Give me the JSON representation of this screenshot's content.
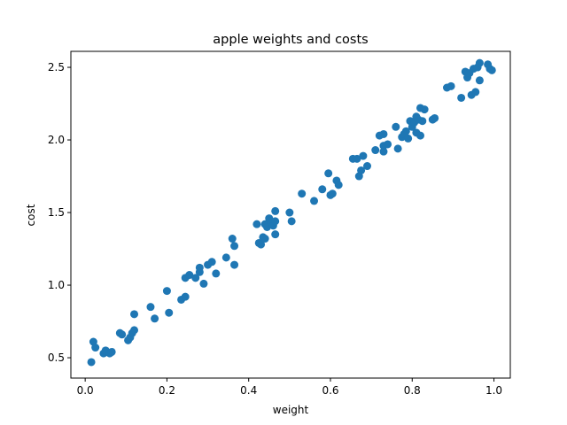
{
  "chart_data": {
    "type": "scatter",
    "title": "apple weights and costs",
    "xlabel": "weight",
    "ylabel": "cost",
    "xlim": [
      -0.035,
      1.04
    ],
    "ylim": [
      0.36,
      2.61
    ],
    "xticks": [
      0.0,
      0.2,
      0.4,
      0.6,
      0.8,
      1.0
    ],
    "xtick_labels": [
      "0.0",
      "0.2",
      "0.4",
      "0.6",
      "0.8",
      "1.0"
    ],
    "yticks": [
      0.5,
      1.0,
      1.5,
      2.0,
      2.5
    ],
    "ytick_labels": [
      "0.5",
      "1.0",
      "1.5",
      "2.0",
      "2.5"
    ],
    "grid": false,
    "legend": "none",
    "marker_color": "#1f77b4",
    "series": [
      {
        "points": [
          [
            0.015,
            0.47
          ],
          [
            0.02,
            0.61
          ],
          [
            0.025,
            0.57
          ],
          [
            0.045,
            0.53
          ],
          [
            0.05,
            0.55
          ],
          [
            0.06,
            0.53
          ],
          [
            0.065,
            0.54
          ],
          [
            0.085,
            0.67
          ],
          [
            0.09,
            0.66
          ],
          [
            0.105,
            0.62
          ],
          [
            0.11,
            0.64
          ],
          [
            0.115,
            0.67
          ],
          [
            0.12,
            0.8
          ],
          [
            0.12,
            0.69
          ],
          [
            0.16,
            0.85
          ],
          [
            0.17,
            0.77
          ],
          [
            0.2,
            0.96
          ],
          [
            0.205,
            0.81
          ],
          [
            0.235,
            0.9
          ],
          [
            0.245,
            0.92
          ],
          [
            0.245,
            1.05
          ],
          [
            0.255,
            1.07
          ],
          [
            0.27,
            1.05
          ],
          [
            0.28,
            1.12
          ],
          [
            0.28,
            1.09
          ],
          [
            0.29,
            1.01
          ],
          [
            0.3,
            1.14
          ],
          [
            0.31,
            1.16
          ],
          [
            0.32,
            1.08
          ],
          [
            0.345,
            1.19
          ],
          [
            0.36,
            1.32
          ],
          [
            0.365,
            1.14
          ],
          [
            0.365,
            1.27
          ],
          [
            0.42,
            1.42
          ],
          [
            0.425,
            1.29
          ],
          [
            0.43,
            1.28
          ],
          [
            0.435,
            1.33
          ],
          [
            0.44,
            1.32
          ],
          [
            0.44,
            1.42
          ],
          [
            0.445,
            1.4
          ],
          [
            0.45,
            1.46
          ],
          [
            0.455,
            1.43
          ],
          [
            0.46,
            1.41
          ],
          [
            0.465,
            1.51
          ],
          [
            0.465,
            1.35
          ],
          [
            0.465,
            1.44
          ],
          [
            0.5,
            1.5
          ],
          [
            0.505,
            1.44
          ],
          [
            0.53,
            1.63
          ],
          [
            0.56,
            1.58
          ],
          [
            0.58,
            1.66
          ],
          [
            0.595,
            1.77
          ],
          [
            0.605,
            1.63
          ],
          [
            0.6,
            1.62
          ],
          [
            0.615,
            1.72
          ],
          [
            0.62,
            1.69
          ],
          [
            0.655,
            1.87
          ],
          [
            0.665,
            1.87
          ],
          [
            0.67,
            1.75
          ],
          [
            0.675,
            1.79
          ],
          [
            0.68,
            1.89
          ],
          [
            0.69,
            1.82
          ],
          [
            0.71,
            1.93
          ],
          [
            0.72,
            2.03
          ],
          [
            0.73,
            1.96
          ],
          [
            0.73,
            2.04
          ],
          [
            0.73,
            1.92
          ],
          [
            0.74,
            1.97
          ],
          [
            0.76,
            2.09
          ],
          [
            0.765,
            1.94
          ],
          [
            0.775,
            2.02
          ],
          [
            0.78,
            2.04
          ],
          [
            0.785,
            2.06
          ],
          [
            0.79,
            2.01
          ],
          [
            0.795,
            2.13
          ],
          [
            0.8,
            2.09
          ],
          [
            0.805,
            2.12
          ],
          [
            0.81,
            2.05
          ],
          [
            0.81,
            2.16
          ],
          [
            0.815,
            2.14
          ],
          [
            0.82,
            2.03
          ],
          [
            0.82,
            2.22
          ],
          [
            0.825,
            2.13
          ],
          [
            0.83,
            2.21
          ],
          [
            0.85,
            2.14
          ],
          [
            0.855,
            2.15
          ],
          [
            0.885,
            2.36
          ],
          [
            0.895,
            2.37
          ],
          [
            0.92,
            2.29
          ],
          [
            0.93,
            2.47
          ],
          [
            0.935,
            2.43
          ],
          [
            0.94,
            2.46
          ],
          [
            0.945,
            2.31
          ],
          [
            0.95,
            2.49
          ],
          [
            0.955,
            2.33
          ],
          [
            0.96,
            2.5
          ],
          [
            0.965,
            2.53
          ],
          [
            0.965,
            2.41
          ],
          [
            0.985,
            2.52
          ],
          [
            0.99,
            2.49
          ],
          [
            0.995,
            2.48
          ]
        ]
      }
    ]
  }
}
